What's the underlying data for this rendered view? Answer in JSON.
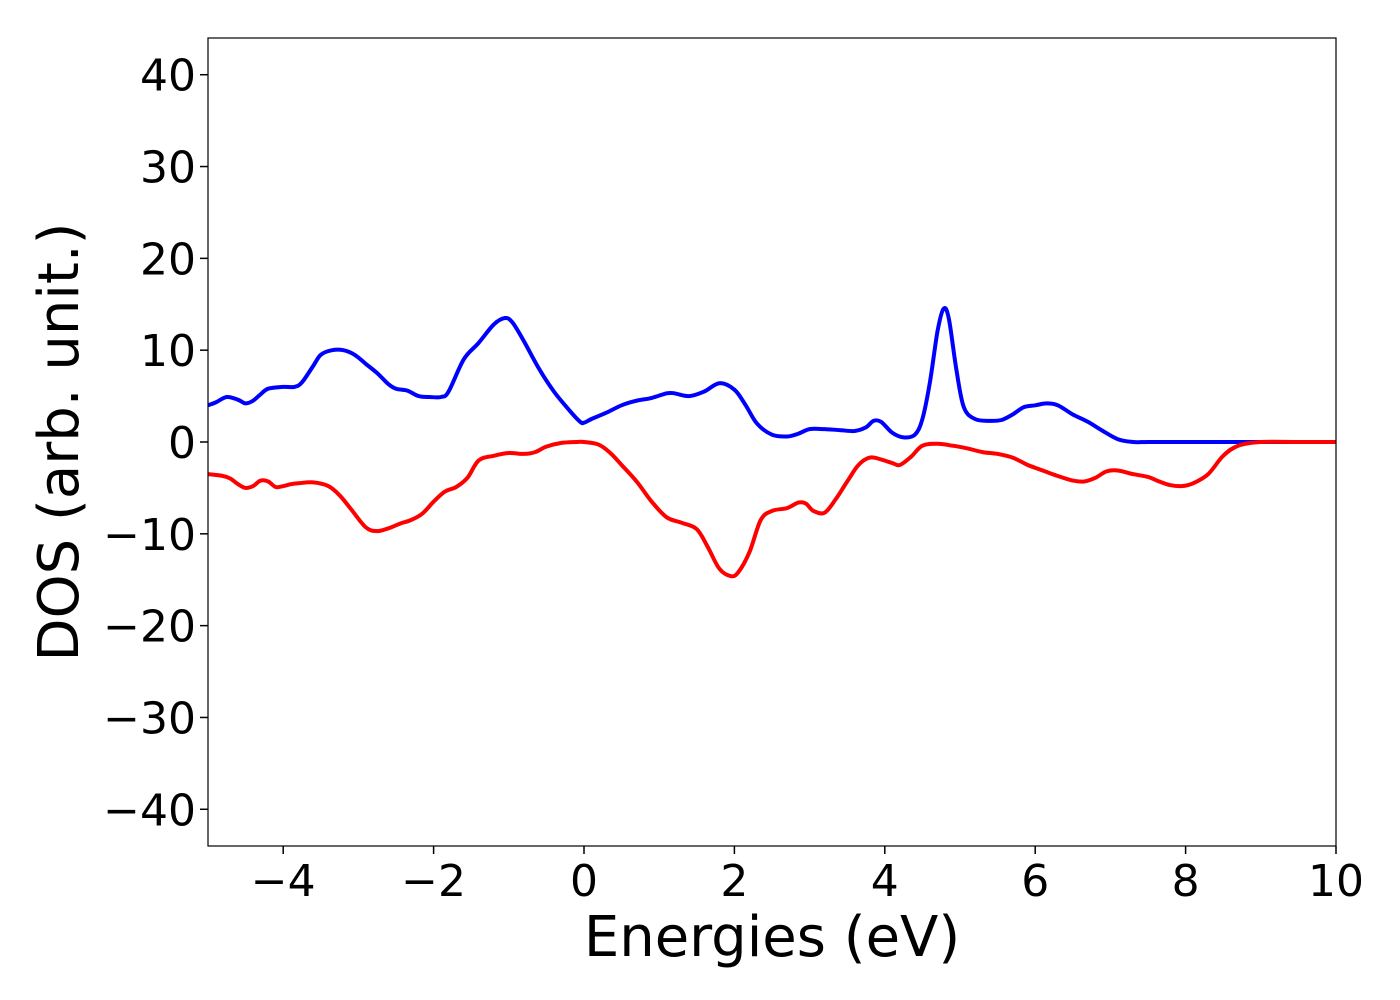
{
  "chart_data": {
    "type": "line",
    "title": "",
    "xlabel": "Energies (eV)",
    "ylabel": "DOS (arb. unit.)",
    "xlim": [
      -5,
      10
    ],
    "ylim": [
      -44,
      44
    ],
    "grid": false,
    "x_ticks": [
      -4,
      -2,
      0,
      2,
      4,
      6,
      8,
      10
    ],
    "x_tick_labels": [
      "−4",
      "−2",
      "0",
      "2",
      "4",
      "6",
      "8",
      "10"
    ],
    "y_ticks": [
      -40,
      -30,
      -20,
      -10,
      0,
      10,
      20,
      30,
      40
    ],
    "y_tick_labels": [
      "−40",
      "−30",
      "−20",
      "−10",
      "0",
      "10",
      "20",
      "30",
      "40"
    ],
    "series": [
      {
        "color": "#0000ff",
        "x": [
          -5.0,
          -4.9,
          -4.75,
          -4.6,
          -4.5,
          -4.4,
          -4.3,
          -4.2,
          -4.0,
          -3.85,
          -3.75,
          -3.6,
          -3.5,
          -3.35,
          -3.2,
          -3.05,
          -2.9,
          -2.75,
          -2.6,
          -2.5,
          -2.35,
          -2.2,
          -2.05,
          -1.9,
          -1.8,
          -1.6,
          -1.4,
          -1.2,
          -1.05,
          -0.95,
          -0.8,
          -0.6,
          -0.4,
          -0.2,
          -0.05,
          0.0,
          0.1,
          0.3,
          0.5,
          0.7,
          0.9,
          1.1,
          1.2,
          1.4,
          1.6,
          1.8,
          2.0,
          2.15,
          2.3,
          2.5,
          2.7,
          2.85,
          3.0,
          3.2,
          3.4,
          3.6,
          3.75,
          3.85,
          3.95,
          4.1,
          4.25,
          4.4,
          4.5,
          4.6,
          4.7,
          4.78,
          4.85,
          4.95,
          5.05,
          5.2,
          5.4,
          5.55,
          5.7,
          5.85,
          6.0,
          6.15,
          6.3,
          6.5,
          6.7,
          6.9,
          7.1,
          7.3,
          7.5,
          8.0,
          8.5,
          9.0,
          9.5,
          10.0
        ],
        "y": [
          4.0,
          4.3,
          4.9,
          4.6,
          4.2,
          4.5,
          5.2,
          5.8,
          6.0,
          6.0,
          6.5,
          8.3,
          9.5,
          10.0,
          10.0,
          9.5,
          8.5,
          7.5,
          6.3,
          5.8,
          5.6,
          5.0,
          4.9,
          4.9,
          5.5,
          9.0,
          10.8,
          12.8,
          13.5,
          13.0,
          11.0,
          8.0,
          5.5,
          3.5,
          2.2,
          2.1,
          2.5,
          3.2,
          4.0,
          4.5,
          4.8,
          5.3,
          5.3,
          5.0,
          5.5,
          6.4,
          5.7,
          4.0,
          2.0,
          0.8,
          0.6,
          0.9,
          1.4,
          1.4,
          1.3,
          1.2,
          1.6,
          2.3,
          2.2,
          1.0,
          0.5,
          0.8,
          2.5,
          6.5,
          12.0,
          14.5,
          13.5,
          8.0,
          3.8,
          2.5,
          2.3,
          2.4,
          3.0,
          3.8,
          4.0,
          4.2,
          4.0,
          3.0,
          2.2,
          1.2,
          0.3,
          0.0,
          0.0,
          0.0,
          0.0,
          0.0,
          0.0,
          0.0
        ]
      },
      {
        "color": "#ff0000",
        "x": [
          -5.0,
          -4.8,
          -4.7,
          -4.6,
          -4.5,
          -4.4,
          -4.3,
          -4.2,
          -4.1,
          -4.0,
          -3.9,
          -3.8,
          -3.6,
          -3.4,
          -3.25,
          -3.1,
          -2.9,
          -2.75,
          -2.6,
          -2.45,
          -2.3,
          -2.15,
          -2.0,
          -1.85,
          -1.7,
          -1.55,
          -1.4,
          -1.2,
          -1.0,
          -0.8,
          -0.65,
          -0.5,
          -0.3,
          -0.1,
          0.0,
          0.2,
          0.35,
          0.5,
          0.7,
          0.9,
          1.1,
          1.3,
          1.5,
          1.65,
          1.8,
          1.95,
          2.05,
          2.2,
          2.35,
          2.5,
          2.7,
          2.85,
          2.95,
          3.05,
          3.2,
          3.35,
          3.5,
          3.65,
          3.8,
          3.95,
          4.1,
          4.2,
          4.35,
          4.5,
          4.7,
          4.9,
          5.1,
          5.3,
          5.5,
          5.7,
          5.9,
          6.1,
          6.3,
          6.5,
          6.65,
          6.8,
          6.95,
          7.1,
          7.3,
          7.5,
          7.65,
          7.8,
          7.95,
          8.1,
          8.3,
          8.5,
          8.7,
          9.0,
          9.5,
          10.0
        ],
        "y": [
          -3.5,
          -3.7,
          -4.0,
          -4.6,
          -5.0,
          -4.8,
          -4.2,
          -4.3,
          -4.9,
          -4.8,
          -4.6,
          -4.5,
          -4.4,
          -4.8,
          -5.8,
          -7.3,
          -9.3,
          -9.7,
          -9.4,
          -8.9,
          -8.5,
          -7.8,
          -6.5,
          -5.4,
          -4.9,
          -3.9,
          -2.0,
          -1.5,
          -1.2,
          -1.3,
          -1.1,
          -0.5,
          -0.1,
          0.0,
          0.0,
          -0.3,
          -1.2,
          -2.5,
          -4.3,
          -6.5,
          -8.2,
          -8.8,
          -9.5,
          -11.5,
          -13.8,
          -14.6,
          -14.2,
          -12.0,
          -8.5,
          -7.5,
          -7.2,
          -6.6,
          -6.7,
          -7.5,
          -7.7,
          -6.2,
          -4.3,
          -2.5,
          -1.7,
          -1.9,
          -2.3,
          -2.5,
          -1.6,
          -0.4,
          -0.2,
          -0.4,
          -0.7,
          -1.1,
          -1.3,
          -1.7,
          -2.5,
          -3.1,
          -3.7,
          -4.2,
          -4.3,
          -3.9,
          -3.2,
          -3.1,
          -3.5,
          -3.8,
          -4.3,
          -4.7,
          -4.8,
          -4.5,
          -3.5,
          -1.5,
          -0.4,
          0.0,
          0.0,
          0.0
        ]
      }
    ]
  }
}
